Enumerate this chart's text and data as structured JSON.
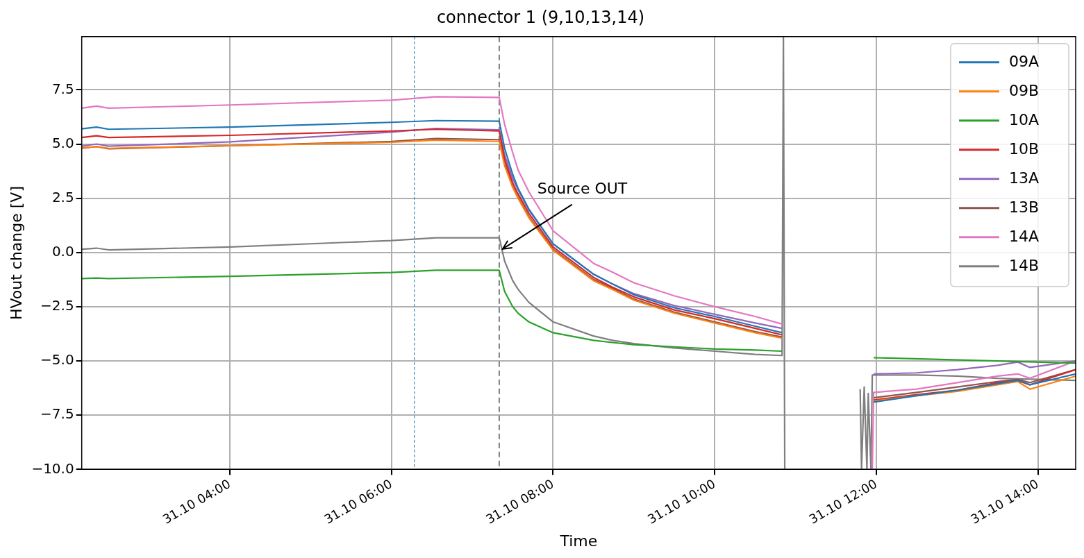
{
  "chart_data": {
    "type": "line",
    "title": "connector 1 (9,10,13,14)",
    "xlabel": "Time",
    "ylabel": "HVout change [V]",
    "xlim": [
      "--10-31T02:10",
      "--10-31T14:28"
    ],
    "ylim": [
      -10,
      9.95
    ],
    "xticks": [
      {
        "value": "--10-31T04:00",
        "label": "31.10 04:00"
      },
      {
        "value": "--10-31T06:00",
        "label": "31.10 06:00"
      },
      {
        "value": "--10-31T08:00",
        "label": "31.10 08:00"
      },
      {
        "value": "--10-31T10:00",
        "label": "31.10 10:00"
      },
      {
        "value": "--10-31T12:00",
        "label": "31.10 12:00"
      },
      {
        "value": "--10-31T14:00",
        "label": "31.10 14:00"
      }
    ],
    "yticks": [
      {
        "value": -10,
        "label": "−10.0"
      },
      {
        "value": -7.5,
        "label": "−7.5"
      },
      {
        "value": -5,
        "label": "−5.0"
      },
      {
        "value": -2.5,
        "label": "−2.5"
      },
      {
        "value": 0,
        "label": "0.0"
      },
      {
        "value": 2.5,
        "label": "2.5"
      },
      {
        "value": 5,
        "label": "5.0"
      },
      {
        "value": 7.5,
        "label": "7.5"
      }
    ],
    "grid": true,
    "legend": "top right",
    "line_style": "solid",
    "ref_lines": [
      {
        "axis": "x",
        "value": "--10-31T06:17",
        "color": "#1f77b4",
        "line_style": "dotted"
      },
      {
        "axis": "x",
        "value": "--10-31T07:20",
        "color": "#808080",
        "line_style": "dashed"
      }
    ],
    "annotations": [
      {
        "text": "Source OUT",
        "x": "--10-31T07:21",
        "y": 0.1
      }
    ],
    "x": [
      "--10-31T02:10",
      "--10-31T02:21",
      "--10-31T02:30",
      "--10-31T04:00",
      "--10-31T06:00",
      "--10-31T06:33",
      "--10-31T07:20",
      "--10-31T07:24",
      "--10-31T07:30",
      "--10-31T07:34",
      "--10-31T07:42",
      "--10-31T08:00",
      "--10-31T08:30",
      "--10-31T08:44",
      "--10-31T09:00",
      "--10-31T09:30",
      "--10-31T10:00",
      "--10-31T10:30",
      "--10-31T10:50",
      "--10-31T11:00",
      "--10-31T11:58",
      "--10-31T12:30",
      "--10-31T13:00",
      "--10-31T13:30",
      "--10-31T13:45",
      "--10-31T13:54",
      "--10-31T14:28"
    ],
    "series": [
      {
        "name": "09A",
        "color": "#1f77b4",
        "values": [
          5.7,
          5.78,
          5.68,
          5.78,
          6.0,
          6.08,
          6.05,
          4.8,
          3.6,
          2.95,
          2.0,
          0.4,
          -1.0,
          -1.45,
          -1.95,
          -2.55,
          -2.95,
          -3.4,
          -3.7,
          null,
          -6.9,
          -6.6,
          -6.35,
          -6.05,
          -5.9,
          -6.1,
          -5.6
        ]
      },
      {
        "name": "09B",
        "color": "#ff7f0e",
        "values": [
          4.82,
          4.88,
          4.8,
          4.92,
          5.08,
          5.18,
          5.12,
          4.0,
          3.0,
          2.5,
          1.6,
          0.1,
          -1.3,
          -1.7,
          -2.2,
          -2.8,
          -3.25,
          -3.7,
          -3.95,
          null,
          -6.85,
          -6.6,
          -6.4,
          -6.1,
          -5.95,
          -6.3,
          -5.7
        ]
      },
      {
        "name": "10A",
        "color": "#2ca02c",
        "x": [
          "--10-31T02:10",
          "--10-31T02:21",
          "--10-31T02:30",
          "--10-31T04:00",
          "--10-31T06:00",
          "--10-31T06:33",
          "--10-31T07:20",
          "--10-31T07:24",
          "--10-31T07:30",
          "--10-31T07:34",
          "--10-31T07:42",
          "--10-31T08:00",
          "--10-31T08:30",
          "--10-31T08:44",
          "--10-31T09:00",
          "--10-31T09:30",
          "--10-31T10:00",
          "--10-31T10:30",
          "--10-31T10:50",
          "--10-31T11:00",
          "--10-31T11:58",
          "--10-31T13:30",
          "--10-31T14:28"
        ],
        "values": [
          -1.2,
          -1.18,
          -1.2,
          -1.1,
          -0.92,
          -0.82,
          -0.82,
          -1.8,
          -2.5,
          -2.8,
          -3.2,
          -3.7,
          -4.05,
          -4.15,
          -4.25,
          -4.35,
          -4.45,
          -4.5,
          -4.55,
          null,
          -4.85,
          -5.0,
          -5.1
        ]
      },
      {
        "name": "10B",
        "color": "#d62728",
        "values": [
          5.3,
          5.38,
          5.3,
          5.4,
          5.6,
          5.68,
          5.6,
          4.3,
          3.2,
          2.7,
          1.8,
          0.25,
          -1.15,
          -1.6,
          -2.05,
          -2.65,
          -3.05,
          -3.5,
          -3.8,
          null,
          -6.8,
          -6.55,
          -6.35,
          -6.0,
          -5.9,
          -6.1,
          -5.4
        ]
      },
      {
        "name": "13A",
        "color": "#9467bd",
        "values": [
          4.9,
          5.0,
          4.9,
          5.1,
          5.55,
          5.72,
          5.65,
          4.5,
          3.4,
          2.9,
          1.95,
          0.4,
          -1.0,
          -1.45,
          -1.9,
          -2.45,
          -2.85,
          -3.25,
          -3.5,
          null,
          -5.6,
          -5.55,
          -5.4,
          -5.2,
          -5.05,
          -5.3,
          -5.0
        ]
      },
      {
        "name": "13B",
        "color": "#8c564b",
        "values": [
          4.8,
          4.88,
          4.78,
          4.92,
          5.12,
          5.25,
          5.2,
          4.1,
          3.05,
          2.55,
          1.65,
          0.15,
          -1.25,
          -1.65,
          -2.15,
          -2.75,
          -3.2,
          -3.65,
          -3.9,
          null,
          -6.7,
          -6.45,
          -6.2,
          -5.95,
          -5.85,
          -6.0,
          -5.4
        ]
      },
      {
        "name": "14A",
        "color": "#e377c2",
        "x": [
          "--10-31T02:10",
          "--10-31T02:21",
          "--10-31T02:30",
          "--10-31T04:00",
          "--10-31T06:00",
          "--10-31T06:33",
          "--10-31T07:20",
          "--10-31T07:24",
          "--10-31T07:30",
          "--10-31T07:34",
          "--10-31T07:42",
          "--10-31T08:00",
          "--10-31T08:30",
          "--10-31T08:44",
          "--10-31T09:00",
          "--10-31T09:30",
          "--10-31T10:00",
          "--10-31T10:30",
          "--10-31T10:50",
          "--10-31T11:00",
          "--10-31T11:57",
          "--10-31T11:58",
          "--10-31T12:30",
          "--10-31T13:00",
          "--10-31T13:30",
          "--10-31T13:45",
          "--10-31T13:54",
          "--10-31T14:28"
        ],
        "values": [
          6.65,
          6.75,
          6.65,
          6.8,
          7.02,
          7.18,
          7.15,
          5.9,
          4.6,
          3.8,
          2.8,
          1.0,
          -0.5,
          -0.9,
          -1.4,
          -2.0,
          -2.5,
          -2.95,
          -3.3,
          null,
          -10,
          -6.45,
          -6.3,
          -6.0,
          -5.7,
          -5.6,
          -5.8,
          -5.0
        ]
      },
      {
        "name": "14B",
        "color": "#7f7f7f",
        "x": [
          "--10-31T02:10",
          "--10-31T02:21",
          "--10-31T02:30",
          "--10-31T04:00",
          "--10-31T06:00",
          "--10-31T06:33",
          "--10-31T07:20",
          "--10-31T07:24",
          "--10-31T07:30",
          "--10-31T07:34",
          "--10-31T07:42",
          "--10-31T08:00",
          "--10-31T08:30",
          "--10-31T08:44",
          "--10-31T09:00",
          "--10-31T09:30",
          "--10-31T10:00",
          "--10-31T10:30",
          "--10-31T10:50",
          "--10-31T10:51",
          "--10-31T10:52",
          "--10-31T10:53",
          "--10-31T11:48",
          "--10-31T11:49",
          "--10-31T11:51",
          "--10-31T11:53",
          "--10-31T11:54",
          "--10-31T11:56",
          "--10-31T11:57",
          "--10-31T12:30",
          "--10-31T13:00",
          "--10-31T13:30",
          "--10-31T14:00",
          "--10-31T14:28"
        ],
        "values": [
          0.15,
          0.2,
          0.12,
          0.25,
          0.55,
          0.68,
          0.68,
          -0.4,
          -1.3,
          -1.7,
          -2.3,
          -3.2,
          -3.85,
          -4.05,
          -4.2,
          -4.4,
          -4.55,
          -4.7,
          -4.75,
          9.95,
          -10,
          null,
          -6.3,
          -10,
          -6.2,
          -10,
          -6.5,
          -10,
          -5.65,
          -5.65,
          -5.7,
          -5.8,
          -5.85,
          -5.9
        ]
      }
    ]
  }
}
